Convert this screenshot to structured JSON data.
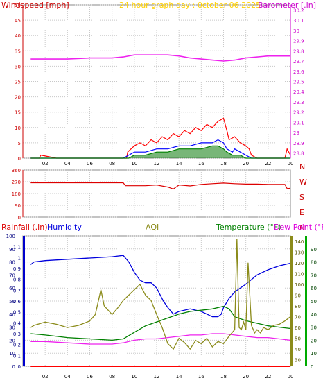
{
  "chart_data": [
    {
      "type": "line",
      "title": "24 hour graph day : 0ctober 06 2025",
      "ylabel_left": "Windspeed [mph]",
      "ylabel_right": "Barometer [.in]",
      "x_ticks": [
        "02",
        "04",
        "06",
        "08",
        "10",
        "12",
        "14",
        "16",
        "18",
        "20",
        "22",
        "00"
      ],
      "y_left_ticks": [
        "50",
        "45",
        "40",
        "35",
        "30",
        "25",
        "20",
        "15",
        "10",
        "5",
        "0"
      ],
      "y_left_range": [
        0,
        50
      ],
      "y_right_ticks": [
        "30.2",
        "30.1",
        "30",
        "29.9",
        "29.8",
        "29.7",
        "29.6",
        "29.5",
        "29.4",
        "29.3",
        "29.2",
        "29.1",
        "29",
        "28.9",
        "28.8"
      ],
      "y_right_range": [
        28.75,
        30.25
      ],
      "colors": {
        "gust": "#ff0000",
        "avg": "#0000ff",
        "speed": "#008000",
        "barometer": "#ee22ee",
        "left_axis": "#cc0000",
        "right_axis": "#cc00cc",
        "title": "#ffd000",
        "grid": "#c8c8c8"
      },
      "series": [
        {
          "key": "barometer",
          "axis": "right",
          "x": [
            0.7,
            2,
            4,
            6,
            8,
            9,
            10,
            11,
            12,
            13,
            14,
            15,
            16,
            17,
            18,
            19,
            20,
            22,
            24
          ],
          "values": [
            29.72,
            29.72,
            29.72,
            29.73,
            29.73,
            29.74,
            29.76,
            29.76,
            29.76,
            29.76,
            29.75,
            29.73,
            29.72,
            29.71,
            29.7,
            29.71,
            29.73,
            29.75,
            29.75
          ]
        },
        {
          "key": "gust",
          "axis": "left",
          "x": [
            0.7,
            1.5,
            1.6,
            3,
            8.5,
            9,
            9.3,
            9.4,
            10,
            10.5,
            11,
            11.5,
            12,
            12.5,
            13,
            13.5,
            14,
            14.5,
            15,
            15.5,
            16,
            16.5,
            17,
            17.5,
            18,
            18.3,
            18.5,
            19,
            19.5,
            20,
            20.3,
            20.5,
            21,
            22,
            23.5,
            23.7,
            24
          ],
          "values": [
            0,
            0,
            1,
            0,
            0,
            0,
            0,
            2,
            4,
            5,
            4,
            6,
            5,
            7,
            6,
            8,
            7,
            9,
            8,
            10,
            9,
            11,
            10,
            12,
            13,
            9,
            6,
            7,
            5,
            4,
            3,
            1,
            0,
            0,
            0,
            3,
            1
          ]
        },
        {
          "key": "avg",
          "axis": "left",
          "x": [
            0.7,
            9,
            9.5,
            10,
            11,
            12,
            13,
            14,
            15,
            16,
            17,
            17.5,
            18,
            18.3,
            18.8,
            19,
            19.5,
            20,
            20.5,
            21,
            24
          ],
          "values": [
            0,
            0,
            1,
            2,
            2,
            3,
            3,
            4,
            4,
            5,
            5,
            6,
            5,
            3,
            2,
            3,
            2,
            1,
            0,
            0,
            0
          ]
        },
        {
          "key": "speed",
          "axis": "left",
          "x": [
            0.7,
            9,
            9.5,
            10,
            11,
            12,
            13,
            14,
            15,
            16,
            17,
            17.5,
            18,
            18.3,
            18.8,
            19.5,
            20,
            20.5,
            24
          ],
          "values": [
            0,
            0,
            0,
            1,
            1,
            2,
            2,
            3,
            3,
            3,
            4,
            4,
            3,
            2,
            1,
            1,
            0,
            0,
            0
          ]
        }
      ]
    },
    {
      "type": "line",
      "ylabel_right_letters": [
        "N",
        "W",
        "S",
        "E",
        "N"
      ],
      "x_ticks": [
        "02",
        "04",
        "06",
        "08",
        "10",
        "12",
        "14",
        "16",
        "18",
        "20",
        "22",
        "00"
      ],
      "y_ticks": [
        "360",
        "270",
        "180",
        "90",
        "0"
      ],
      "y_range": [
        0,
        360
      ],
      "colors": {
        "direction": "#dd0000",
        "left_axis": "#cc0000",
        "letters": "#cc0000"
      },
      "series": [
        {
          "key": "direction",
          "x": [
            0.7,
            2,
            4,
            6,
            8,
            9,
            9.2,
            10,
            11,
            12,
            13,
            13.5,
            14,
            15,
            16,
            17,
            18,
            19,
            20,
            21,
            22,
            23.5,
            23.7,
            24
          ],
          "values": [
            262,
            262,
            262,
            262,
            262,
            262,
            240,
            240,
            240,
            245,
            230,
            215,
            245,
            238,
            250,
            255,
            260,
            255,
            252,
            252,
            250,
            250,
            218,
            220
          ]
        }
      ]
    },
    {
      "type": "line",
      "labels": {
        "rainfall": "Rainfall (.in)",
        "humidity": "Humidity",
        "aqi": "AQI",
        "temperature": "Temperature (°F)",
        "dewpoint": "Dew Point (°F)"
      },
      "x_ticks": [
        "02",
        "04",
        "06",
        "08",
        "10",
        "12",
        "14",
        "16",
        "18",
        "20",
        "22",
        "00"
      ],
      "humidity_ticks": [
        "100",
        "90",
        "80",
        "70",
        "60",
        "50",
        "40",
        "30",
        "20",
        "10",
        "0"
      ],
      "humidity_range": [
        0,
        100
      ],
      "rain_ticks": [
        "1.1",
        "1",
        "0.9",
        "0.8",
        "0.7",
        "0.6",
        "0.5",
        "0.4",
        "0.3",
        "0.2",
        "0.1",
        "0"
      ],
      "rain_range": [
        0,
        1.2
      ],
      "aqi_ticks": [
        "140",
        "130",
        "120",
        "110",
        "100",
        "90",
        "80",
        "70",
        "60",
        "50",
        "40",
        "30"
      ],
      "aqi_range": [
        24,
        145
      ],
      "temp_ticks": [
        "90",
        "80",
        "70",
        "60",
        "50",
        "40",
        "30",
        "20",
        "10",
        "0"
      ],
      "temp_range": [
        0,
        100
      ],
      "colors": {
        "humidity": "#0000dd",
        "aqi": "#8b8b1a",
        "temperature": "#008000",
        "dewpoint": "#ee22ee",
        "rain": "#ff0000",
        "rain_axis": "#0000cc",
        "rain_label": "#dd0000",
        "aqi_label": "#8b8b1a",
        "temp_label": "#008000",
        "dew_label": "#dd00dd"
      },
      "series": [
        {
          "key": "humidity",
          "x": [
            0.7,
            1,
            2,
            4,
            6,
            8,
            9,
            9.5,
            10,
            10.5,
            11,
            11.5,
            12,
            12.3,
            12.6,
            13,
            13.5,
            14,
            15,
            16,
            16.5,
            17,
            17.5,
            17.8,
            18,
            18.5,
            19,
            20,
            21,
            22,
            23,
            24
          ],
          "values": [
            78,
            80,
            81,
            82,
            83,
            84,
            85,
            80,
            72,
            66,
            64,
            64,
            60,
            55,
            50,
            45,
            40,
            42,
            44,
            42,
            40,
            38,
            38,
            40,
            45,
            52,
            57,
            63,
            70,
            74,
            77,
            79
          ]
        },
        {
          "key": "temperature",
          "x": [
            0.7,
            2,
            4,
            6,
            8,
            9,
            10,
            11,
            12,
            13,
            14,
            15,
            16,
            17,
            18,
            18.5,
            19,
            20,
            21,
            22,
            23,
            24
          ],
          "values": [
            25,
            24,
            22,
            21,
            20,
            21,
            26,
            31,
            34,
            37,
            40,
            42,
            43,
            44,
            46,
            44,
            38,
            35,
            33,
            31,
            30,
            29
          ]
        },
        {
          "key": "dewpoint",
          "x": [
            0.7,
            2,
            4,
            6,
            8,
            9,
            10,
            11,
            12,
            13,
            14,
            15,
            16,
            17,
            18,
            19,
            20,
            21,
            22,
            23,
            24
          ],
          "values": [
            19,
            19,
            18,
            17,
            17,
            18,
            20,
            21,
            21,
            22,
            23,
            24,
            24,
            25,
            25,
            24,
            23,
            22,
            22,
            21,
            20
          ]
        },
        {
          "key": "aqi",
          "x": [
            0.7,
            1,
            2,
            3,
            4,
            5,
            6,
            6.5,
            7,
            7.3,
            8,
            8.5,
            9,
            9.5,
            10,
            10.5,
            11,
            11.5,
            12,
            12.5,
            13,
            13.5,
            14,
            14.5,
            15,
            15.5,
            16,
            16.5,
            17,
            17.5,
            18,
            18.5,
            19,
            19.2,
            19.4,
            19.6,
            19.8,
            20,
            20.2,
            20.5,
            20.8,
            21,
            21.3,
            21.6,
            22,
            22.5,
            23,
            23.5,
            24
          ],
          "values": [
            60,
            62,
            65,
            63,
            60,
            62,
            66,
            72,
            95,
            80,
            72,
            78,
            85,
            90,
            95,
            100,
            90,
            85,
            72,
            60,
            45,
            40,
            50,
            46,
            40,
            48,
            45,
            50,
            42,
            47,
            45,
            52,
            58,
            142,
            60,
            58,
            65,
            58,
            120,
            62,
            55,
            58,
            55,
            60,
            58,
            62,
            63,
            66,
            70
          ]
        },
        {
          "key": "rain",
          "x": [
            0.7,
            24
          ],
          "values": [
            0,
            0
          ]
        }
      ]
    }
  ]
}
